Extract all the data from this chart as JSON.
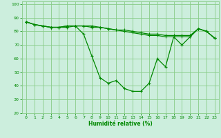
{
  "title": "",
  "xlabel": "Humidité relative (%)",
  "ylabel": "",
  "bg_color": "#cceedd",
  "grid_color": "#88cc88",
  "line_color": "#008800",
  "marker_color": "#008800",
  "xlim": [
    -0.5,
    23.5
  ],
  "ylim": [
    20,
    102
  ],
  "yticks": [
    20,
    30,
    40,
    50,
    60,
    70,
    80,
    90,
    100
  ],
  "xticks": [
    0,
    1,
    2,
    3,
    4,
    5,
    6,
    7,
    8,
    9,
    10,
    11,
    12,
    13,
    14,
    15,
    16,
    17,
    18,
    19,
    20,
    21,
    22,
    23
  ],
  "series": [
    [
      87,
      85,
      84,
      83,
      83,
      83,
      84,
      78,
      62,
      46,
      42,
      44,
      38,
      36,
      36,
      42,
      60,
      54,
      76,
      70,
      76,
      82,
      80,
      75
    ],
    [
      87,
      85,
      84,
      83,
      83,
      84,
      84,
      84,
      83,
      83,
      82,
      81,
      81,
      80,
      79,
      78,
      78,
      77,
      77,
      77,
      77,
      82,
      80,
      75
    ],
    [
      87,
      85,
      84,
      83,
      83,
      84,
      84,
      84,
      84,
      83,
      82,
      81,
      80,
      79,
      78,
      77,
      77,
      76,
      76,
      76,
      76,
      82,
      80,
      75
    ]
  ]
}
